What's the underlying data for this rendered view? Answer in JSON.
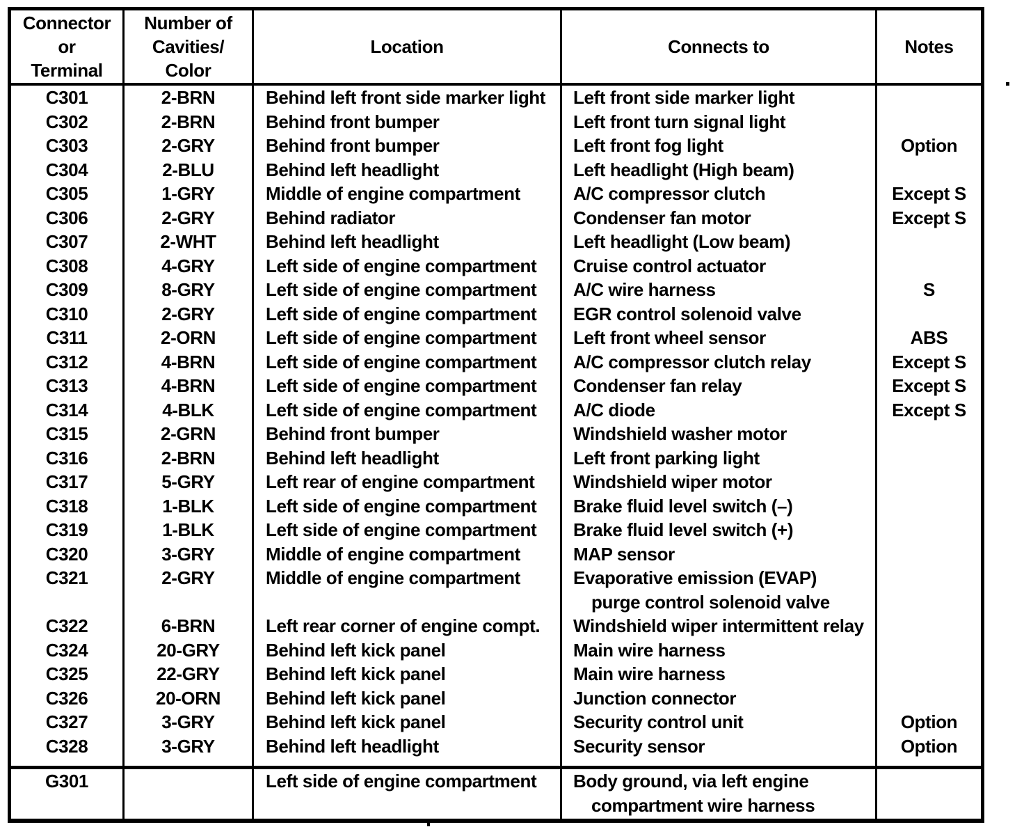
{
  "table": {
    "columns": [
      "Connector\nor\nTerminal",
      "Number of\nCavities/\nColor",
      "Location",
      "Connects to",
      "Notes"
    ],
    "rows": [
      {
        "connector": "C301",
        "cavities": "2-BRN",
        "location": "Behind left front side marker light",
        "connects_to": [
          "Left front side marker light"
        ],
        "notes": ""
      },
      {
        "connector": "C302",
        "cavities": "2-BRN",
        "location": "Behind front bumper",
        "connects_to": [
          "Left front turn signal light"
        ],
        "notes": ""
      },
      {
        "connector": "C303",
        "cavities": "2-GRY",
        "location": "Behind front bumper",
        "connects_to": [
          "Left front fog light"
        ],
        "notes": "Option"
      },
      {
        "connector": "C304",
        "cavities": "2-BLU",
        "location": "Behind left headlight",
        "connects_to": [
          "Left headlight (High beam)"
        ],
        "notes": ""
      },
      {
        "connector": "C305",
        "cavities": "1-GRY",
        "location": "Middle of engine compartment",
        "connects_to": [
          "A/C compressor clutch"
        ],
        "notes": "Except S"
      },
      {
        "connector": "C306",
        "cavities": "2-GRY",
        "location": "Behind radiator",
        "connects_to": [
          "Condenser fan motor"
        ],
        "notes": "Except S"
      },
      {
        "connector": "C307",
        "cavities": "2-WHT",
        "location": "Behind left headlight",
        "connects_to": [
          "Left headlight (Low beam)"
        ],
        "notes": ""
      },
      {
        "connector": "C308",
        "cavities": "4-GRY",
        "location": "Left side of engine compartment",
        "connects_to": [
          "Cruise control actuator"
        ],
        "notes": ""
      },
      {
        "connector": "C309",
        "cavities": "8-GRY",
        "location": "Left side of engine compartment",
        "connects_to": [
          "A/C wire harness"
        ],
        "notes": "S"
      },
      {
        "connector": "C310",
        "cavities": "2-GRY",
        "location": "Left side of engine compartment",
        "connects_to": [
          "EGR control solenoid valve"
        ],
        "notes": ""
      },
      {
        "connector": "C311",
        "cavities": "2-ORN",
        "location": "Left side of engine compartment",
        "connects_to": [
          "Left front wheel sensor"
        ],
        "notes": "ABS"
      },
      {
        "connector": "C312",
        "cavities": "4-BRN",
        "location": "Left side of engine compartment",
        "connects_to": [
          "A/C compressor clutch relay"
        ],
        "notes": "Except S"
      },
      {
        "connector": "C313",
        "cavities": "4-BRN",
        "location": "Left side of engine compartment",
        "connects_to": [
          "Condenser fan relay"
        ],
        "notes": "Except S"
      },
      {
        "connector": "C314",
        "cavities": "4-BLK",
        "location": "Left side of engine compartment",
        "connects_to": [
          "A/C diode"
        ],
        "notes": "Except S"
      },
      {
        "connector": "C315",
        "cavities": "2-GRN",
        "location": "Behind front bumper",
        "connects_to": [
          "Windshield washer motor"
        ],
        "notes": ""
      },
      {
        "connector": "C316",
        "cavities": "2-BRN",
        "location": "Behind left headlight",
        "connects_to": [
          "Left front parking light"
        ],
        "notes": ""
      },
      {
        "connector": "C317",
        "cavities": "5-GRY",
        "location": "Left rear of engine compartment",
        "connects_to": [
          "Windshield wiper motor"
        ],
        "notes": ""
      },
      {
        "connector": "C318",
        "cavities": "1-BLK",
        "location": "Left side of engine compartment",
        "connects_to": [
          "Brake fluid level switch (–)"
        ],
        "notes": ""
      },
      {
        "connector": "C319",
        "cavities": "1-BLK",
        "location": "Left side of engine compartment",
        "connects_to": [
          "Brake fluid level switch (+)"
        ],
        "notes": ""
      },
      {
        "connector": "C320",
        "cavities": "3-GRY",
        "location": "Middle of engine compartment",
        "connects_to": [
          "MAP sensor"
        ],
        "notes": ""
      },
      {
        "connector": "C321",
        "cavities": "2-GRY",
        "location": "Middle of engine compartment",
        "connects_to": [
          "Evaporative emission (EVAP)",
          "purge control solenoid valve"
        ],
        "notes": ""
      },
      {
        "connector": "C322",
        "cavities": "6-BRN",
        "location": "Left rear corner of engine compt.",
        "connects_to": [
          "Windshield wiper intermittent relay"
        ],
        "notes": ""
      },
      {
        "connector": "C324",
        "cavities": "20-GRY",
        "location": "Behind left kick panel",
        "connects_to": [
          "Main wire harness"
        ],
        "notes": ""
      },
      {
        "connector": "C325",
        "cavities": "22-GRY",
        "location": "Behind left kick panel",
        "connects_to": [
          "Main wire harness"
        ],
        "notes": ""
      },
      {
        "connector": "C326",
        "cavities": "20-ORN",
        "location": "Behind left kick panel",
        "connects_to": [
          "Junction connector"
        ],
        "notes": ""
      },
      {
        "connector": "C327",
        "cavities": "3-GRY",
        "location": "Behind left kick panel",
        "connects_to": [
          "Security control unit"
        ],
        "notes": "Option"
      },
      {
        "connector": "C328",
        "cavities": "3-GRY",
        "location": "Behind left headlight",
        "connects_to": [
          "Security sensor"
        ],
        "notes": "Option"
      }
    ],
    "ground_rows": [
      {
        "connector": "G301",
        "cavities": "",
        "location": "Left side of engine compartment",
        "connects_to": [
          "Body ground, via left engine",
          "compartment wire harness"
        ],
        "notes": ""
      }
    ]
  }
}
